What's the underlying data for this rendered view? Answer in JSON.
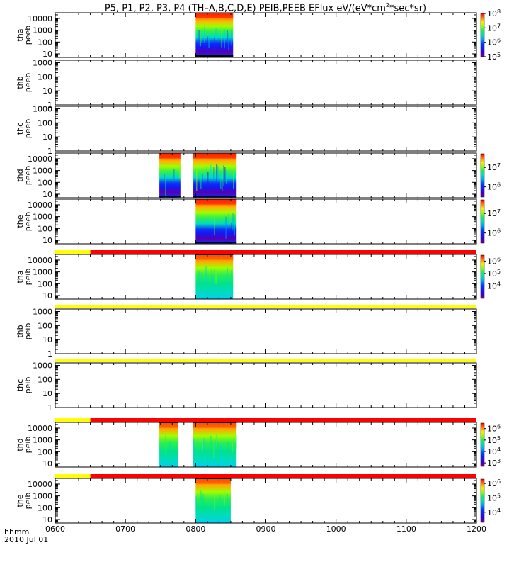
{
  "title": {
    "main": "P5, P1, P2, P3, P4 (TH–A,B,C,D,E) PEIB,PEEB EFlux eV/(eV*cm",
    "sup": "2",
    "end": "*sec*sr)"
  },
  "footer": {
    "time_label": "hhmm",
    "date_label": "2010 Jul 01"
  },
  "colors": {
    "bar_red": "#ff0000",
    "bar_yellow": "#ffff00",
    "flag_black": "#000000"
  },
  "chart_data": {
    "type": "heatmap",
    "x_axis": {
      "ticks": [
        "0600",
        "0700",
        "0800",
        "0900",
        "1000",
        "1100",
        "1200"
      ],
      "range": [
        "06:00",
        "12:00"
      ]
    },
    "y_scale": "log",
    "colormap": "rainbow (purple-blue-cyan-green-yellow-red)",
    "panels": [
      {
        "probe": "tha",
        "instrument": "peeb",
        "ylabel": [
          "tha",
          "peeb"
        ],
        "yticks": [
          "10",
          "100",
          "1000",
          "10000"
        ],
        "ylim": [
          5,
          30000
        ],
        "colorbar": {
          "ticks": [
            {
              "base": "10",
              "exp": "5",
              "value": 100000
            },
            {
              "base": "10",
              "exp": "6",
              "value": 1000000
            },
            {
              "base": "10",
              "exp": "7",
              "value": 10000000
            },
            {
              "base": "10",
              "exp": "8",
              "value": 100000000
            }
          ],
          "range": [
            100000,
            100000000
          ]
        },
        "data_intervals": [
          [
            "08:00",
            "08:32"
          ]
        ]
      },
      {
        "probe": "thb",
        "instrument": "peeb",
        "ylabel": [
          "thb",
          "peeb"
        ],
        "yticks": [
          "1",
          "10",
          "100",
          "1000"
        ],
        "ylim": [
          1,
          1500
        ],
        "data_intervals": []
      },
      {
        "probe": "thc",
        "instrument": "peeb",
        "ylabel": [
          "thc",
          "peeb"
        ],
        "yticks": [
          "1",
          "10",
          "100",
          "1000"
        ],
        "ylim": [
          1,
          1500
        ],
        "data_intervals": []
      },
      {
        "probe": "thd",
        "instrument": "peeb",
        "ylabel": [
          "thd",
          "peeb"
        ],
        "yticks": [
          "10",
          "100",
          "1000",
          "10000"
        ],
        "ylim": [
          5,
          30000
        ],
        "colorbar": {
          "ticks": [
            {
              "base": "10",
              "exp": "6",
              "value": 1000000
            },
            {
              "base": "10",
              "exp": "7",
              "value": 10000000
            }
          ],
          "range": [
            300000,
            50000000
          ]
        },
        "data_intervals": [
          [
            "07:29",
            "07:47"
          ],
          [
            "07:58",
            "08:35"
          ]
        ]
      },
      {
        "probe": "the",
        "instrument": "peeb",
        "ylabel": [
          "the",
          "peeb"
        ],
        "yticks": [
          "10",
          "100",
          "1000",
          "10000"
        ],
        "ylim": [
          5,
          30000
        ],
        "colorbar": {
          "ticks": [
            {
              "base": "10",
              "exp": "6",
              "value": 1000000
            },
            {
              "base": "10",
              "exp": "7",
              "value": 10000000
            }
          ],
          "range": [
            300000,
            50000000
          ]
        },
        "data_intervals": [
          [
            "08:00",
            "08:35"
          ]
        ]
      },
      {
        "probe": "tha",
        "instrument": "peib",
        "ylabel": [
          "tha",
          "peib"
        ],
        "yticks": [
          "10",
          "100",
          "1000",
          "10000"
        ],
        "ylim": [
          5,
          30000
        ],
        "colorbar": {
          "ticks": [
            {
              "base": "10",
              "exp": "4",
              "value": 10000
            },
            {
              "base": "10",
              "exp": "5",
              "value": 100000
            },
            {
              "base": "10",
              "exp": "6",
              "value": 1000000
            }
          ],
          "range": [
            1000,
            3000000
          ]
        },
        "mode_bar": [
          {
            "from": "06:00",
            "to": "06:30",
            "mode": "yellow"
          },
          {
            "from": "06:30",
            "to": "12:00",
            "mode": "red"
          }
        ],
        "data_intervals": [
          [
            "08:00",
            "08:32"
          ]
        ]
      },
      {
        "probe": "thb",
        "instrument": "peib",
        "ylabel": [
          "thb",
          "peib"
        ],
        "yticks": [
          "1",
          "10",
          "100",
          "1000"
        ],
        "ylim": [
          1,
          1500
        ],
        "mode_bar": [
          {
            "from": "06:00",
            "to": "12:00",
            "mode": "yellow"
          }
        ],
        "data_intervals": []
      },
      {
        "probe": "thc",
        "instrument": "peib",
        "ylabel": [
          "thc",
          "peib"
        ],
        "yticks": [
          "1",
          "10",
          "100",
          "1000"
        ],
        "ylim": [
          1,
          1500
        ],
        "mode_bar": [
          {
            "from": "06:00",
            "to": "12:00",
            "mode": "yellow"
          }
        ],
        "data_intervals": []
      },
      {
        "probe": "thd",
        "instrument": "peib",
        "ylabel": [
          "thd",
          "peib"
        ],
        "yticks": [
          "10",
          "100",
          "1000",
          "10000"
        ],
        "ylim": [
          5,
          30000
        ],
        "colorbar": {
          "ticks": [
            {
              "base": "10",
              "exp": "3",
              "value": 1000
            },
            {
              "base": "10",
              "exp": "4",
              "value": 10000
            },
            {
              "base": "10",
              "exp": "5",
              "value": 100000
            },
            {
              "base": "10",
              "exp": "6",
              "value": 1000000
            }
          ],
          "range": [
            500,
            3000000
          ]
        },
        "mode_bar": [
          {
            "from": "06:00",
            "to": "06:30",
            "mode": "yellow"
          },
          {
            "from": "06:30",
            "to": "12:00",
            "mode": "red"
          }
        ],
        "data_intervals": [
          [
            "07:29",
            "07:45"
          ],
          [
            "07:58",
            "08:35"
          ]
        ]
      },
      {
        "probe": "the",
        "instrument": "peib",
        "ylabel": [
          "the",
          "peib"
        ],
        "yticks": [
          "10",
          "100",
          "1000",
          "10000"
        ],
        "ylim": [
          5,
          30000
        ],
        "colorbar": {
          "ticks": [
            {
              "base": "10",
              "exp": "4",
              "value": 10000
            },
            {
              "base": "10",
              "exp": "5",
              "value": 100000
            },
            {
              "base": "10",
              "exp": "6",
              "value": 1000000
            }
          ],
          "range": [
            2000,
            2000000
          ]
        },
        "mode_bar": [
          {
            "from": "06:00",
            "to": "06:30",
            "mode": "yellow"
          },
          {
            "from": "06:30",
            "to": "12:00",
            "mode": "red"
          }
        ],
        "data_intervals": [
          [
            "08:00",
            "08:30"
          ]
        ]
      }
    ]
  }
}
